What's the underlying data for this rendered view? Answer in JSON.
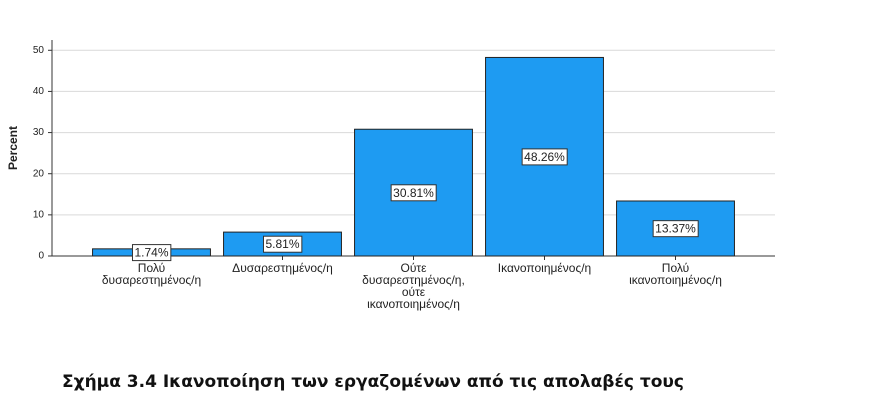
{
  "chart_data": {
    "type": "bar",
    "y_label": "Percent",
    "categories": [
      "Πολύ\nδυσαρεστημένος/η",
      "Δυσαρεστημένος/η",
      "Ούτε\nδυσαρεστημένος/η,\nούτε\nικανοποιημένος/η",
      "Ικανοποιημένος/η",
      "Πολύ\nικανοποιημένος/η"
    ],
    "values": [
      1.74,
      5.81,
      30.81,
      48.26,
      13.37
    ],
    "value_labels": [
      "1.74%",
      "5.81%",
      "30.81%",
      "48.26%",
      "13.37%"
    ],
    "color": "#1e9bf2",
    "ylim": [
      0,
      52.5
    ],
    "yticks": [
      0,
      10,
      20,
      30,
      40,
      50
    ],
    "grid": true
  },
  "caption": "Σχήμα 3.4 Ικανοποίηση των εργαζομένων από τις απολαβές τους"
}
